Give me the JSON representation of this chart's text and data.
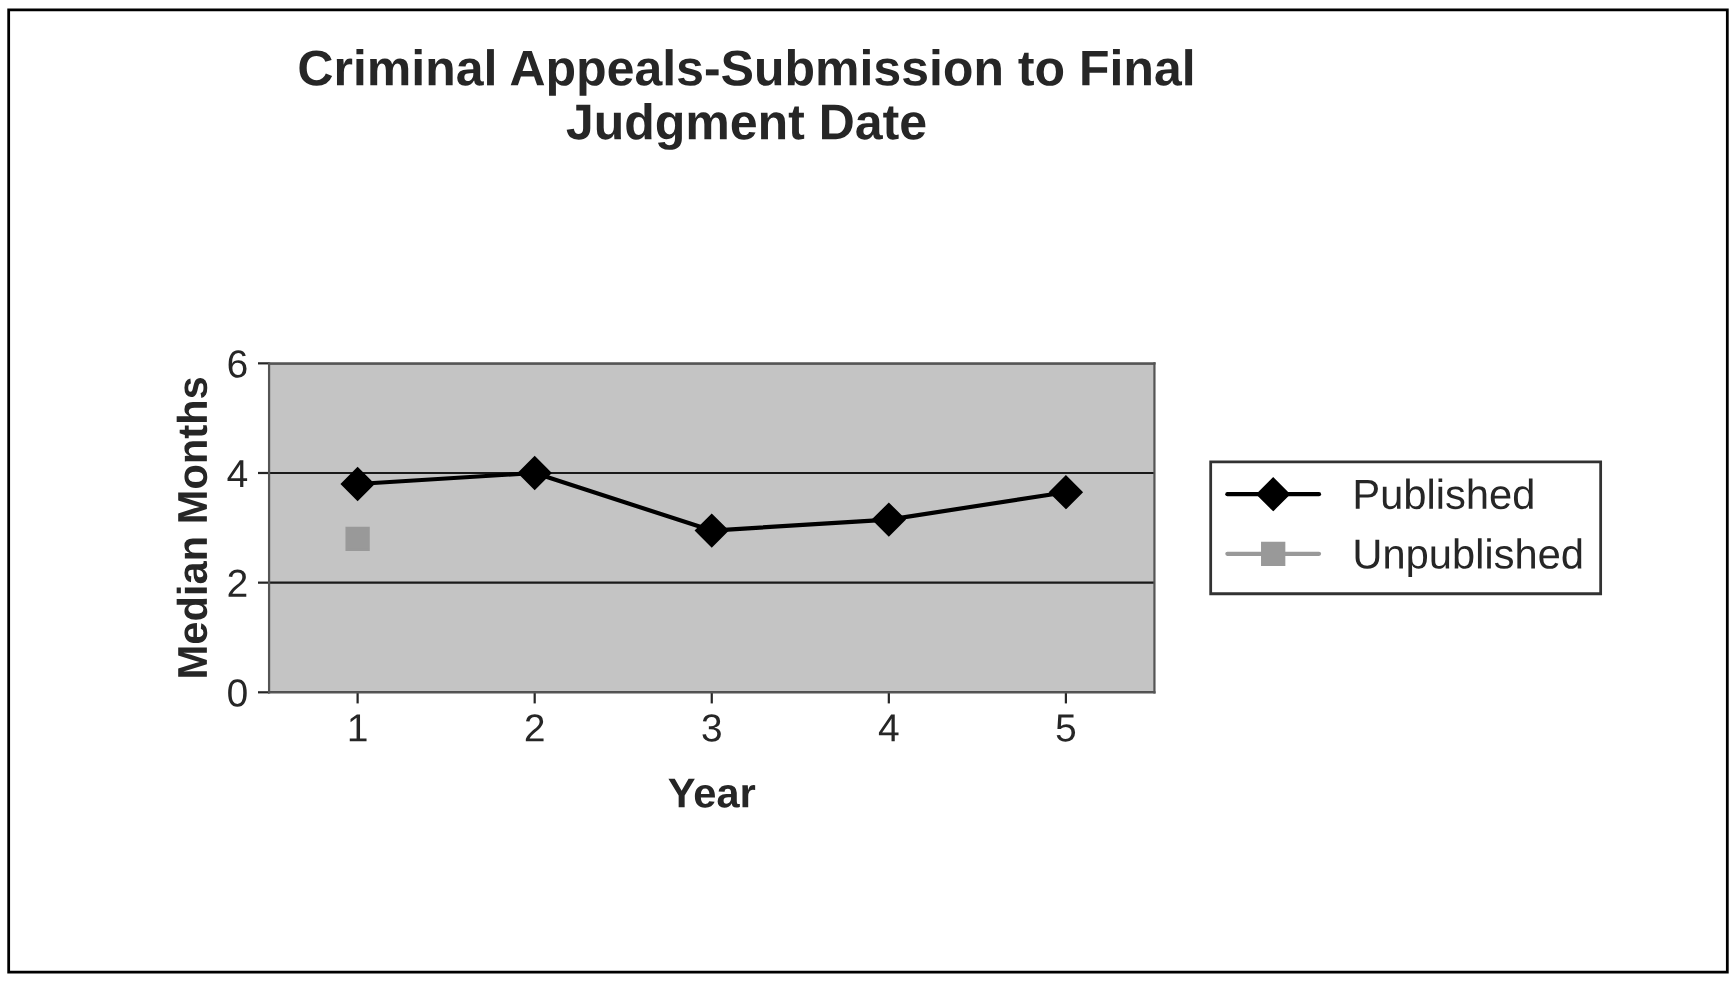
{
  "chart_data": {
    "type": "line",
    "title": "Criminal Appeals-Submission to Final\nJudgment Date",
    "xlabel": "Year",
    "ylabel": "Median Months",
    "categories": [
      "1",
      "2",
      "3",
      "4",
      "5"
    ],
    "series": [
      {
        "name": "Published",
        "color": "#000000",
        "marker": "diamond",
        "values": [
          3.8,
          4.0,
          2.95,
          3.15,
          3.65
        ]
      },
      {
        "name": "Unpublished",
        "color": "#999999",
        "marker": "square",
        "values": [
          2.8,
          null,
          null,
          null,
          null
        ]
      }
    ],
    "ylim": [
      0,
      6
    ],
    "yticks": [
      0,
      2,
      4,
      6
    ],
    "grid": "y",
    "legend": "right"
  }
}
